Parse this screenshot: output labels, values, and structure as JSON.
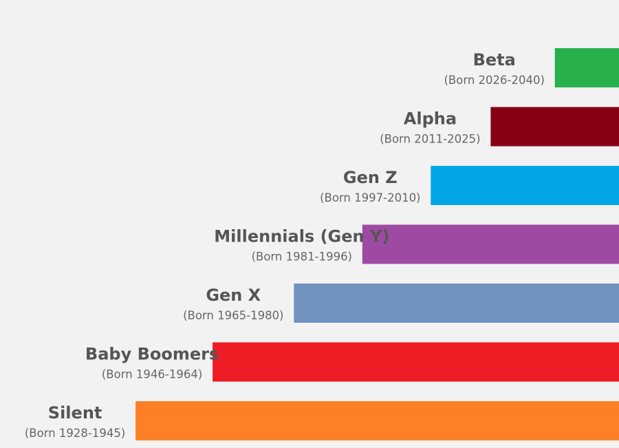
{
  "chart_data": {
    "type": "bar",
    "orientation": "horizontal",
    "title": "",
    "xlabel": "",
    "ylabel": "",
    "grid": false,
    "legend": "none",
    "axis": {
      "start_year": 2040,
      "end_year": 1900,
      "direction": "right-to-left"
    },
    "bars": [
      {
        "name": "Beta",
        "years_label": "(Born 2026-2040)",
        "start": 2026,
        "end": 2040,
        "color": "#27b04b"
      },
      {
        "name": "Alpha",
        "years_label": "(Born 2011-2025)",
        "start": 2011,
        "end": 2025,
        "color": "#880015"
      },
      {
        "name": "Gen Z",
        "years_label": "(Born 1997-2010)",
        "start": 1997,
        "end": 2010,
        "color": "#00a6e6"
      },
      {
        "name": "Millennials (Gen Y)",
        "years_label": "(Born 1981-1996)",
        "start": 1981,
        "end": 1996,
        "color": "#9f4aa2"
      },
      {
        "name": "Gen X",
        "years_label": "(Born 1965-1980)",
        "start": 1965,
        "end": 1980,
        "color": "#7093c0"
      },
      {
        "name": "Baby Boomers",
        "years_label": "(Born 1946-1964)",
        "start": 1946,
        "end": 1964,
        "color": "#ee1c24"
      },
      {
        "name": "Silent",
        "years_label": "(Born 1928-1945)",
        "start": 1928,
        "end": 1945,
        "color": "#ff7f27"
      }
    ]
  }
}
